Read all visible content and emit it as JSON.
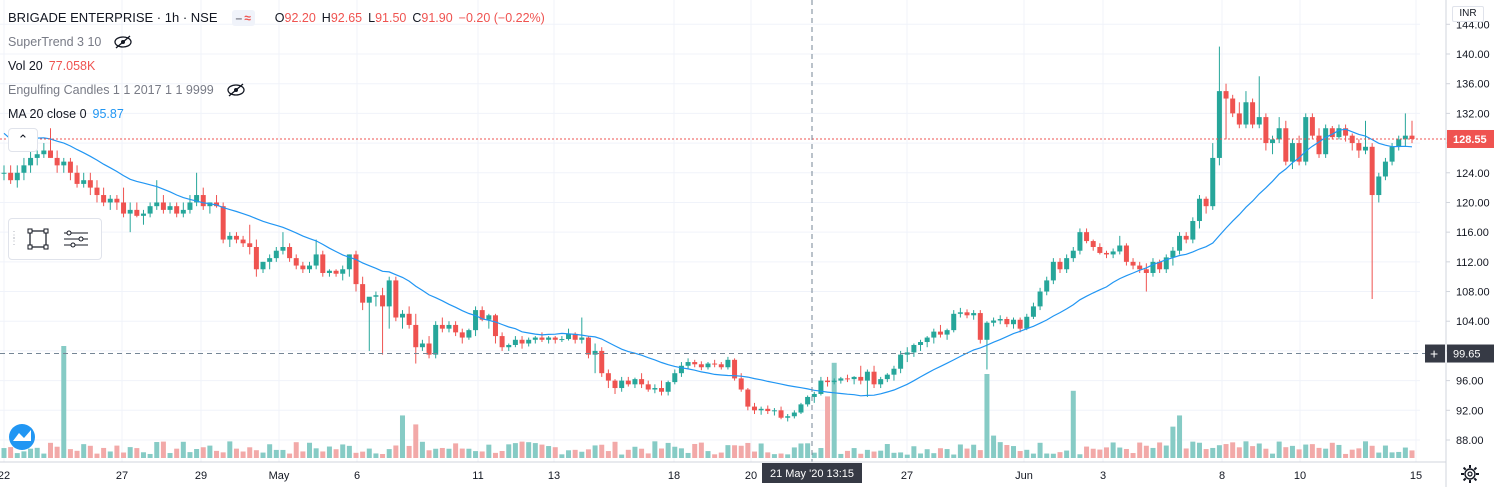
{
  "header": {
    "symbol": "BRIGADE ENTERPRISE · 1h · NSE",
    "ohlc": [
      {
        "l": "O",
        "v": "92.20"
      },
      {
        "l": "H",
        "v": "92.65"
      },
      {
        "l": "L",
        "v": "91.50"
      },
      {
        "l": "C",
        "v": "91.90"
      }
    ],
    "change": "−0.20 (−0.22%)",
    "badge_icons": [
      "minus-icon",
      "wave-icon"
    ]
  },
  "indicators": [
    {
      "label": "SuperTrend 3 10",
      "value": "",
      "icon": "eye-hidden-icon"
    },
    {
      "label": "Vol 20",
      "value": "77.058K",
      "icon": ""
    },
    {
      "label": "Engulfing Candles 1 1 2017 1 1 9999",
      "value": "",
      "icon": "eye-hidden-icon"
    },
    {
      "label": "MA 20 close 0",
      "value": "95.87",
      "icon": ""
    }
  ],
  "currency": "INR",
  "colors": {
    "up": "#26a69a",
    "down": "#ef5350",
    "ma": "#2196f3",
    "up_vol": "#86cbc5",
    "down_vol": "#f2a9a8"
  },
  "price_axis": {
    "ticks": [
      "144.00",
      "140.00",
      "136.00",
      "132.00",
      "128.00",
      "124.00",
      "120.00",
      "116.00",
      "112.00",
      "108.00",
      "104.00",
      "100.00",
      "96.00",
      "92.00",
      "88.00"
    ],
    "current_price": "128.55",
    "crosshair_price": "99.65"
  },
  "time_axis": {
    "labels": [
      "22",
      "27",
      "29",
      "May",
      "6",
      "11",
      "13",
      "18",
      "20",
      "27",
      "Jun",
      "3",
      "8",
      "10",
      "15"
    ],
    "crosshair_label": "21 May '20  13:15"
  },
  "chart_data": {
    "type": "candlestick",
    "title": "BRIGADE ENTERPRISE · 1h · NSE",
    "ylim": [
      86,
      146
    ],
    "last_price": 128.55,
    "grid": true,
    "ohlc_hourly_approx": [
      [
        124,
        125,
        123,
        124
      ],
      [
        124,
        125,
        122.5,
        123
      ],
      [
        123,
        125,
        122,
        124
      ],
      [
        124,
        126,
        123,
        125
      ],
      [
        125,
        127,
        124,
        126
      ],
      [
        126,
        127,
        125,
        126.5
      ],
      [
        126.5,
        128,
        126,
        127
      ],
      [
        127,
        130,
        126,
        126
      ],
      [
        126,
        127,
        124,
        125
      ],
      [
        125,
        126,
        124,
        125.5
      ],
      [
        125.5,
        126,
        123,
        124
      ],
      [
        124,
        125,
        122,
        122.5
      ],
      [
        122.5,
        124,
        122,
        123
      ],
      [
        123,
        124,
        121,
        122
      ],
      [
        122,
        123,
        120,
        121
      ],
      [
        121,
        122,
        119.5,
        120
      ],
      [
        120,
        121,
        119,
        120.5
      ],
      [
        120.5,
        121,
        119,
        120
      ],
      [
        120,
        122,
        118,
        118.5
      ],
      [
        118.5,
        120,
        116,
        119
      ],
      [
        119,
        120,
        118,
        118.2
      ],
      [
        118.2,
        119,
        117,
        118.5
      ],
      [
        118.5,
        120,
        118,
        119.5
      ],
      [
        119.5,
        123,
        119,
        120
      ],
      [
        120,
        121,
        118.5,
        119
      ],
      [
        119,
        120,
        118.5,
        119.5
      ],
      [
        119.5,
        120,
        118,
        118.5
      ],
      [
        118.5,
        120,
        118,
        119
      ],
      [
        119,
        121,
        118.5,
        120
      ],
      [
        120,
        124,
        119.5,
        121
      ],
      [
        121,
        122,
        119,
        119.5
      ],
      [
        119.5,
        120,
        118.5,
        120
      ],
      [
        120,
        121,
        119.3,
        119.5
      ],
      [
        119.5,
        120,
        114.5,
        115
      ],
      [
        115,
        116,
        114,
        115.5
      ],
      [
        115.5,
        116,
        114.5,
        115
      ],
      [
        115,
        115.5,
        114,
        114.5
      ],
      [
        114.5,
        117,
        113,
        114
      ],
      [
        114,
        115,
        110,
        111
      ],
      [
        111,
        112,
        110.5,
        112
      ],
      [
        112,
        113,
        111,
        112.5
      ],
      [
        112.5,
        114,
        112,
        113.5
      ],
      [
        113.5,
        116,
        113,
        114
      ],
      [
        114,
        114.5,
        112,
        112.5
      ],
      [
        112.5,
        113,
        111,
        111.5
      ],
      [
        111.5,
        112,
        110.5,
        111
      ],
      [
        111,
        112,
        110.5,
        111.5
      ],
      [
        111.5,
        115,
        111,
        113
      ],
      [
        113,
        113.5,
        110,
        110.5
      ],
      [
        110.5,
        111,
        110,
        110.8
      ],
      [
        110.8,
        111,
        110,
        110.4
      ],
      [
        110.4,
        111.5,
        109.5,
        111
      ],
      [
        111,
        113,
        110,
        113
      ],
      [
        113,
        113.5,
        108,
        109
      ],
      [
        109,
        110,
        105.5,
        106.5
      ],
      [
        106.5,
        107,
        100,
        107.3
      ],
      [
        107.3,
        108,
        106,
        107.5
      ],
      [
        107.5,
        108.5,
        99.5,
        106
      ],
      [
        106,
        110,
        103,
        109.5
      ],
      [
        109.5,
        110,
        104,
        104.5
      ],
      [
        104.5,
        105.5,
        103,
        105
      ],
      [
        105,
        106,
        103,
        103.5
      ],
      [
        103.5,
        105,
        98.3,
        100.5
      ],
      [
        100.5,
        101.5,
        100,
        101
      ],
      [
        101,
        102,
        99,
        99.5
      ],
      [
        99.5,
        104,
        99,
        103.5
      ],
      [
        103.5,
        104.5,
        102.5,
        103
      ],
      [
        103,
        104,
        102.5,
        103.5
      ],
      [
        103.5,
        104,
        102,
        102.5
      ],
      [
        102.5,
        103,
        101,
        101.8
      ],
      [
        101.8,
        103,
        101.5,
        102.8
      ],
      [
        102.8,
        106,
        102,
        105.5
      ],
      [
        105.5,
        106,
        104,
        104.2
      ],
      [
        104.2,
        105,
        103,
        104.8
      ],
      [
        104.8,
        105,
        101,
        102
      ],
      [
        102,
        102.5,
        100,
        100.5
      ],
      [
        100.5,
        101,
        100,
        100.8
      ],
      [
        100.8,
        102,
        100.5,
        101.5
      ],
      [
        101.5,
        102,
        100.3,
        101
      ],
      [
        101,
        101.8,
        100.6,
        101.5
      ],
      [
        101.5,
        102,
        101,
        101.8
      ],
      [
        101.8,
        102.5,
        101.2,
        101.5
      ],
      [
        101.5,
        102,
        101,
        101.8
      ],
      [
        101.8,
        102,
        101,
        101.5
      ],
      [
        101.5,
        102,
        101.2,
        101.6
      ],
      [
        101.6,
        103,
        101.4,
        102.3
      ],
      [
        102.3,
        102.5,
        101,
        101.5
      ],
      [
        101.5,
        104.5,
        101,
        101.8
      ],
      [
        101.8,
        102,
        99,
        99.5
      ],
      [
        99.5,
        101,
        97,
        100
      ],
      [
        100,
        100.5,
        96.5,
        97
      ],
      [
        97,
        97.5,
        95,
        96
      ],
      [
        96,
        96.2,
        94.2,
        95
      ],
      [
        95,
        96.5,
        94.5,
        96
      ],
      [
        96,
        96.5,
        95.2,
        95.5
      ],
      [
        95.5,
        96.4,
        95,
        96.2
      ],
      [
        96.2,
        97,
        95,
        95.5
      ],
      [
        95.5,
        96,
        94.5,
        94.8
      ],
      [
        94.8,
        95.5,
        94.3,
        95
      ],
      [
        95,
        96,
        94,
        94.5
      ],
      [
        94.5,
        96,
        94,
        95.8
      ],
      [
        95.8,
        97.5,
        95.5,
        97
      ],
      [
        97,
        98.5,
        96.5,
        98
      ],
      [
        98,
        99,
        97.5,
        98.5
      ],
      [
        98.5,
        98.8,
        97.8,
        98.2
      ],
      [
        98.2,
        98.6,
        97.4,
        97.8
      ],
      [
        97.8,
        98.5,
        97.5,
        98.3
      ],
      [
        98.3,
        98.8,
        97.8,
        98.2
      ],
      [
        98.2,
        98.5,
        97.5,
        97.8
      ],
      [
        97.8,
        99.2,
        97.5,
        98.8
      ],
      [
        98.8,
        99,
        96,
        96.3
      ],
      [
        96.3,
        97,
        94.5,
        94.8
      ],
      [
        94.8,
        95,
        92,
        92.5
      ],
      [
        92.5,
        93,
        91.5,
        92
      ],
      [
        92,
        92.5,
        91.4,
        92.2
      ],
      [
        92.2,
        92.65,
        91.5,
        91.9
      ],
      [
        91.9,
        92.3,
        91.3,
        92
      ],
      [
        92,
        92.5,
        90.8,
        91
      ],
      [
        91,
        91.5,
        90.5,
        91.2
      ],
      [
        91.2,
        92,
        90.9,
        91.7
      ],
      [
        91.7,
        93,
        91.5,
        92.8
      ],
      [
        92.8,
        94,
        92.5,
        93.8
      ],
      [
        93.8,
        94.5,
        93,
        94.2
      ],
      [
        94.2,
        96.5,
        94,
        96
      ],
      [
        96,
        96.5,
        95.2,
        95.8
      ],
      [
        95.8,
        96.3,
        95.5,
        96
      ],
      [
        96,
        96.5,
        95.6,
        96.3
      ],
      [
        96.3,
        96.8,
        95.8,
        96.2
      ],
      [
        96.2,
        96.6,
        95.5,
        96.5
      ],
      [
        96.5,
        98,
        95.5,
        96
      ],
      [
        96,
        97.5,
        93.8,
        97.2
      ],
      [
        97.2,
        98,
        95,
        95.5
      ],
      [
        95.5,
        96.5,
        95,
        96.2
      ],
      [
        96.2,
        97,
        95.8,
        96.8
      ],
      [
        96.8,
        98,
        96,
        97.6
      ],
      [
        97.6,
        100,
        97,
        99.5
      ],
      [
        99.5,
        100.5,
        98.5,
        99.8
      ],
      [
        99.8,
        101,
        99.2,
        100.8
      ],
      [
        100.8,
        101.5,
        100,
        101.2
      ],
      [
        101.2,
        102,
        100.5,
        101.8
      ],
      [
        101.8,
        103,
        101,
        102.6
      ],
      [
        102.6,
        103.5,
        101.8,
        102.2
      ],
      [
        102.2,
        103,
        101.5,
        102.8
      ],
      [
        102.8,
        105.5,
        102.5,
        105
      ],
      [
        105,
        105.8,
        104.5,
        105.2
      ],
      [
        105.2,
        105.6,
        104.4,
        104.8
      ],
      [
        104.8,
        105.5,
        104.2,
        105.1
      ],
      [
        105.1,
        105.5,
        101,
        101.5
      ],
      [
        101.5,
        104,
        97.5,
        103.8
      ],
      [
        103.8,
        104.5,
        103.3,
        104.1
      ],
      [
        104.1,
        104.8,
        103.6,
        104.3
      ],
      [
        104.3,
        104.6,
        103.2,
        103.6
      ],
      [
        103.6,
        104.5,
        103,
        104.2
      ],
      [
        104.2,
        104.5,
        102.5,
        103
      ],
      [
        103,
        105,
        102.8,
        104.6
      ],
      [
        104.6,
        106.5,
        104.3,
        106
      ],
      [
        106,
        108.5,
        105.5,
        108
      ],
      [
        108,
        110,
        107.5,
        109.5
      ],
      [
        109.5,
        112.5,
        109,
        112
      ],
      [
        112,
        112.5,
        110.5,
        111
      ],
      [
        111,
        113,
        110.5,
        112.5
      ],
      [
        112.5,
        114,
        112,
        113.5
      ],
      [
        113.5,
        116.5,
        113,
        116
      ],
      [
        116,
        116.5,
        114.5,
        114.8
      ],
      [
        114.8,
        115,
        113.5,
        114
      ],
      [
        114,
        114.5,
        113,
        113.2
      ],
      [
        113.2,
        113.5,
        112.5,
        113
      ],
      [
        113,
        113.8,
        112.5,
        113.4
      ],
      [
        113.4,
        115.5,
        113,
        114.2
      ],
      [
        114.2,
        114.5,
        111.5,
        112
      ],
      [
        112,
        112.5,
        111,
        111.5
      ],
      [
        111.5,
        112,
        110.5,
        111
      ],
      [
        111,
        111.8,
        108,
        110.5
      ],
      [
        110.5,
        112.5,
        110,
        112
      ],
      [
        112,
        112.3,
        110.5,
        111
      ],
      [
        111,
        113,
        110.5,
        112.6
      ],
      [
        112.6,
        114,
        111.5,
        113.5
      ],
      [
        113.5,
        116,
        113,
        115.5
      ],
      [
        115.5,
        116,
        114.5,
        115
      ],
      [
        115,
        118,
        114.5,
        117.5
      ],
      [
        117.5,
        121,
        116.5,
        120.5
      ],
      [
        120.5,
        120.8,
        118.5,
        119.5
      ],
      [
        119.5,
        128,
        119,
        126
      ],
      [
        126,
        141,
        125,
        135
      ],
      [
        135,
        136,
        128.5,
        134
      ],
      [
        134,
        134.5,
        131.5,
        132
      ],
      [
        132,
        133.5,
        130,
        130.5
      ],
      [
        130.5,
        135,
        130,
        133.5
      ],
      [
        133.5,
        134,
        130,
        130.5
      ],
      [
        130.5,
        137,
        130,
        131.5
      ],
      [
        131.5,
        132,
        127,
        128
      ],
      [
        128,
        129,
        126.5,
        128.5
      ],
      [
        128.5,
        131.5,
        128,
        130
      ],
      [
        130,
        131,
        125,
        125.5
      ],
      [
        125.5,
        128.5,
        124.5,
        128
      ],
      [
        128,
        129,
        125,
        125.5
      ],
      [
        125.5,
        132,
        125,
        131.5
      ],
      [
        131.5,
        132,
        128.5,
        129
      ],
      [
        129,
        130,
        126,
        126.5
      ],
      [
        126.5,
        130.5,
        126,
        130
      ],
      [
        130,
        130.3,
        128.5,
        128.8
      ],
      [
        128.8,
        130.5,
        128.5,
        130
      ],
      [
        130,
        130.5,
        128.2,
        129
      ],
      [
        129,
        129.3,
        127,
        128
      ],
      [
        128,
        128.5,
        126,
        127
      ],
      [
        127,
        131,
        126.5,
        127.5
      ],
      [
        127.5,
        128,
        107,
        121
      ],
      [
        121,
        124,
        120,
        123.5
      ],
      [
        123.5,
        126,
        123,
        125.5
      ],
      [
        125.5,
        128,
        125,
        127.5
      ],
      [
        127.5,
        129,
        127,
        128.5
      ],
      [
        128.5,
        132,
        127.5,
        129
      ],
      [
        129,
        131,
        128,
        128.55
      ]
    ],
    "ma20": [
      {
        "x": "22 Apr",
        "y": 130.5
      },
      {
        "x": "24 Apr",
        "y": 127.5
      },
      {
        "x": "27 Apr",
        "y": 125.5
      },
      {
        "x": "29 Apr",
        "y": 120.5
      },
      {
        "x": "4 May",
        "y": 117.5
      },
      {
        "x": "6 May",
        "y": 114.5
      },
      {
        "x": "8 May",
        "y": 113
      },
      {
        "x": "11 May",
        "y": 108.5
      },
      {
        "x": "13 May",
        "y": 103.5
      },
      {
        "x": "15 May",
        "y": 102.5
      },
      {
        "x": "18 May",
        "y": 100.5
      },
      {
        "x": "20 May",
        "y": 97.5
      },
      {
        "x": "22 May",
        "y": 95.5
      },
      {
        "x": "26 May",
        "y": 94.3
      },
      {
        "x": "27 May",
        "y": 94
      },
      {
        "x": "29 May",
        "y": 96
      },
      {
        "x": "1 Jun",
        "y": 99
      },
      {
        "x": "3 Jun",
        "y": 104
      },
      {
        "x": "5 Jun",
        "y": 110
      },
      {
        "x": "8 Jun",
        "y": 113
      },
      {
        "x": "10 Jun",
        "y": 126
      },
      {
        "x": "11 Jun",
        "y": 130
      },
      {
        "x": "12 Jun",
        "y": 129
      },
      {
        "x": "15 Jun",
        "y": 128
      }
    ],
    "volume_spikes_approx": [
      {
        "x": "24 Apr",
        "v": 1.0
      },
      {
        "x": "8 May",
        "v": 0.38
      },
      {
        "x": "27 May",
        "v": 0.85
      },
      {
        "x": "27 May",
        "v": 0.55
      },
      {
        "x": "1 Jun",
        "v": 0.75
      },
      {
        "x": "3 Jun",
        "v": 0.6
      },
      {
        "x": "8 Jun",
        "v": 0.38
      },
      {
        "x": "8 Jun",
        "v": 0.28
      }
    ]
  }
}
